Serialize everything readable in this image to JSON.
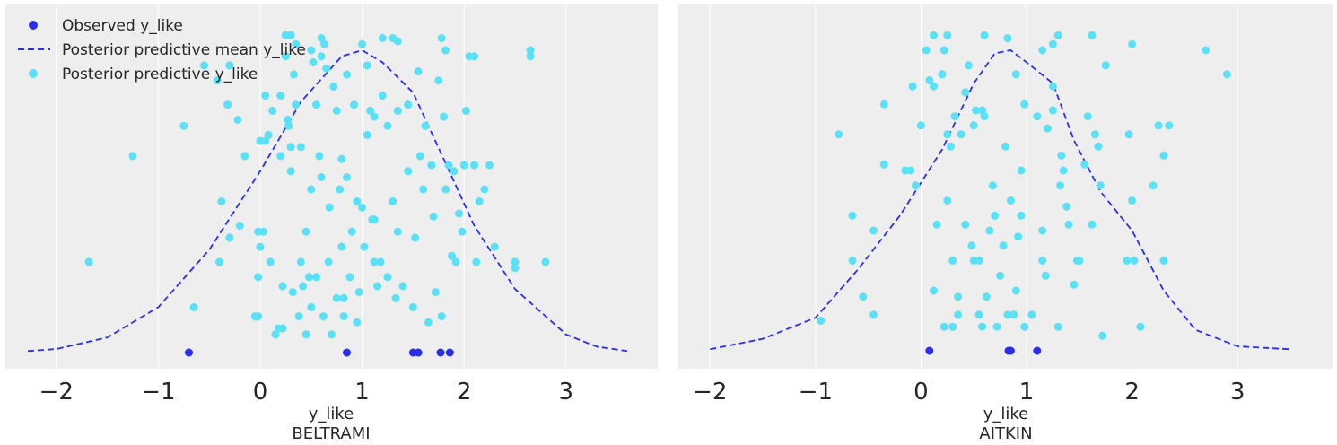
{
  "colors": {
    "background": "#eeeeee",
    "grid": "#ffffff",
    "observed": "#2a2eec",
    "mean_line": "#2a2eec",
    "predictive": "#5ae1f5"
  },
  "legend": {
    "placement": "top-left",
    "entries": [
      {
        "label": "Observed y_like",
        "marker": "dot",
        "color": "#2a2eec"
      },
      {
        "label": "Posterior predictive mean y_like",
        "marker": "dashed-line",
        "color": "#2a2eec"
      },
      {
        "label": "Posterior predictive y_like",
        "marker": "dot",
        "color": "#5ae1f5"
      }
    ]
  },
  "chart_data": [
    {
      "type": "scatter",
      "xlabel": "y_like",
      "title": "BELTRAMI",
      "xlim": [
        -2.5,
        3.9
      ],
      "xticks": [
        -2,
        -1,
        0,
        1,
        2,
        3
      ],
      "tick_labels": [
        "−2",
        "−1",
        "0",
        "1",
        "2",
        "3"
      ],
      "grid": "vertical",
      "observed": [
        -0.7,
        0.85,
        1.5,
        1.55,
        1.77,
        1.86
      ],
      "mean_curve": [
        [
          -2.28,
          0.005
        ],
        [
          -2.0,
          0.012
        ],
        [
          -1.5,
          0.05
        ],
        [
          -1.0,
          0.15
        ],
        [
          -0.5,
          0.34
        ],
        [
          0.0,
          0.6
        ],
        [
          0.4,
          0.83
        ],
        [
          0.8,
          0.98
        ],
        [
          1.0,
          1.0
        ],
        [
          1.2,
          0.96
        ],
        [
          1.5,
          0.86
        ],
        [
          1.8,
          0.64
        ],
        [
          2.1,
          0.42
        ],
        [
          2.5,
          0.21
        ],
        [
          3.0,
          0.06
        ],
        [
          3.3,
          0.02
        ],
        [
          3.6,
          0.005
        ]
      ],
      "predictive_points": [
        [
          -1.68,
          0.3
        ],
        [
          -1.25,
          0.65
        ],
        [
          -0.75,
          0.75
        ],
        [
          -0.65,
          0.15
        ],
        [
          -0.55,
          0.95
        ],
        [
          -0.42,
          0.9
        ],
        [
          -0.4,
          0.3
        ],
        [
          -0.38,
          0.5
        ],
        [
          -0.3,
          0.95
        ],
        [
          -0.32,
          0.82
        ],
        [
          -0.3,
          0.38
        ],
        [
          -0.22,
          0.77
        ],
        [
          -0.2,
          0.42
        ],
        [
          -0.15,
          0.65
        ],
        [
          -0.05,
          0.12
        ],
        [
          -0.02,
          0.12
        ],
        [
          0.0,
          0.7
        ],
        [
          -0.02,
          0.4
        ],
        [
          0.0,
          0.35
        ],
        [
          -0.02,
          0.25
        ],
        [
          0.05,
          0.85
        ],
        [
          0.03,
          0.4
        ],
        [
          0.05,
          0.7
        ],
        [
          0.08,
          0.72
        ],
        [
          0.1,
          0.3
        ],
        [
          0.12,
          0.8
        ],
        [
          0.15,
          0.06
        ],
        [
          0.18,
          0.08
        ],
        [
          0.2,
          0.65
        ],
        [
          0.22,
          0.08
        ],
        [
          0.2,
          0.85
        ],
        [
          0.22,
          0.22
        ],
        [
          0.25,
          0.98
        ],
        [
          0.28,
          0.75
        ],
        [
          0.3,
          0.68
        ],
        [
          0.27,
          0.77
        ],
        [
          0.32,
          0.2
        ],
        [
          0.3,
          0.6
        ],
        [
          0.35,
          0.82
        ],
        [
          0.38,
          0.12
        ],
        [
          0.33,
          0.92
        ],
        [
          0.4,
          0.68
        ],
        [
          0.4,
          0.3
        ],
        [
          0.42,
          0.22
        ],
        [
          0.45,
          0.4
        ],
        [
          0.45,
          0.06
        ],
        [
          0.48,
          0.25
        ],
        [
          0.5,
          0.54
        ],
        [
          0.52,
          0.96
        ],
        [
          0.5,
          0.15
        ],
        [
          0.55,
          0.25
        ],
        [
          0.55,
          0.82
        ],
        [
          0.58,
          0.65
        ],
        [
          0.6,
          0.98
        ],
        [
          0.6,
          0.58
        ],
        [
          0.62,
          0.12
        ],
        [
          0.65,
          0.94
        ],
        [
          0.67,
          0.3
        ],
        [
          0.68,
          0.48
        ],
        [
          0.7,
          0.06
        ],
        [
          0.72,
          0.88
        ],
        [
          0.75,
          0.8
        ],
        [
          0.75,
          0.18
        ],
        [
          0.78,
          0.54
        ],
        [
          0.8,
          0.64
        ],
        [
          0.8,
          0.35
        ],
        [
          0.82,
          0.18
        ],
        [
          0.85,
          0.58
        ],
        [
          0.82,
          0.12
        ],
        [
          0.85,
          0.92
        ],
        [
          0.88,
          0.25
        ],
        [
          0.9,
          0.4
        ],
        [
          0.92,
          0.82
        ],
        [
          0.95,
          0.1
        ],
        [
          0.95,
          0.5
        ],
        [
          0.97,
          0.2
        ],
        [
          1.0,
          0.48
        ],
        [
          1.02,
          0.35
        ],
        [
          1.05,
          0.95
        ],
        [
          1.05,
          0.72
        ],
        [
          1.08,
          0.8
        ],
        [
          1.1,
          0.44
        ],
        [
          1.12,
          0.44
        ],
        [
          1.12,
          0.78
        ],
        [
          1.12,
          0.3
        ],
        [
          1.15,
          0.22
        ],
        [
          1.18,
          0.3
        ],
        [
          1.2,
          0.85
        ],
        [
          1.25,
          0.75
        ],
        [
          1.25,
          0.25
        ],
        [
          1.3,
          0.5
        ],
        [
          1.33,
          0.18
        ],
        [
          1.35,
          0.4
        ],
        [
          1.35,
          0.8
        ],
        [
          1.4,
          0.22
        ],
        [
          1.45,
          0.6
        ],
        [
          1.45,
          0.82
        ],
        [
          1.5,
          0.15
        ],
        [
          1.52,
          0.38
        ],
        [
          1.55,
          0.93
        ],
        [
          1.57,
          0.65
        ],
        [
          1.6,
          0.54
        ],
        [
          1.62,
          0.75
        ],
        [
          1.65,
          0.1
        ],
        [
          1.68,
          0.62
        ],
        [
          1.7,
          0.45
        ],
        [
          1.72,
          0.2
        ],
        [
          1.75,
          0.9
        ],
        [
          1.78,
          0.12
        ],
        [
          1.8,
          0.78
        ],
        [
          1.82,
          0.54
        ],
        [
          1.85,
          0.62
        ],
        [
          1.88,
          0.32
        ],
        [
          1.9,
          0.6
        ],
        [
          1.92,
          0.3
        ],
        [
          1.95,
          0.46
        ],
        [
          1.98,
          0.4
        ],
        [
          2.0,
          0.62
        ],
        [
          2.02,
          0.8
        ],
        [
          2.05,
          0.98
        ],
        [
          2.1,
          0.62
        ],
        [
          2.12,
          0.3
        ],
        [
          2.15,
          0.5
        ],
        [
          2.2,
          0.54
        ],
        [
          2.25,
          0.62
        ],
        [
          2.3,
          0.35
        ],
        [
          2.5,
          0.28
        ],
        [
          2.5,
          0.3
        ],
        [
          2.65,
          0.98
        ],
        [
          2.65,
          1.0
        ],
        [
          2.8,
          0.3
        ],
        [
          0.25,
          1.05
        ],
        [
          0.35,
          1.02
        ],
        [
          0.5,
          1.0
        ],
        [
          0.6,
          1.04
        ],
        [
          0.63,
          1.02
        ],
        [
          1.2,
          1.04
        ],
        [
          1.3,
          1.04
        ],
        [
          1.35,
          1.03
        ],
        [
          1.0,
          1.02
        ],
        [
          0.3,
          1.05
        ],
        [
          1.78,
          1.04
        ],
        [
          1.82,
          1.0
        ],
        [
          2.1,
          0.98
        ]
      ]
    },
    {
      "type": "scatter",
      "xlabel": "y_like",
      "title": "AITKIN",
      "xlim": [
        -2.3,
        3.9
      ],
      "xticks": [
        -2,
        -1,
        0,
        1,
        2,
        3
      ],
      "tick_labels": [
        "−2",
        "−1",
        "0",
        "1",
        "2",
        "3"
      ],
      "grid": "vertical",
      "observed": [
        0.08,
        0.83,
        0.85,
        1.1
      ],
      "mean_curve": [
        [
          -2.0,
          0.005
        ],
        [
          -1.5,
          0.04
        ],
        [
          -1.0,
          0.11
        ],
        [
          -0.6,
          0.27
        ],
        [
          -0.2,
          0.45
        ],
        [
          0.2,
          0.67
        ],
        [
          0.5,
          0.89
        ],
        [
          0.7,
          0.99
        ],
        [
          0.85,
          1.0
        ],
        [
          1.0,
          0.96
        ],
        [
          1.25,
          0.89
        ],
        [
          1.45,
          0.7
        ],
        [
          1.7,
          0.53
        ],
        [
          2.0,
          0.4
        ],
        [
          2.3,
          0.2
        ],
        [
          2.6,
          0.07
        ],
        [
          3.0,
          0.015
        ],
        [
          3.5,
          0.005
        ]
      ],
      "predictive_points": [
        [
          -0.95,
          0.1
        ],
        [
          -0.78,
          0.72
        ],
        [
          -0.65,
          0.45
        ],
        [
          -0.65,
          0.3
        ],
        [
          -0.55,
          0.18
        ],
        [
          -0.45,
          0.12
        ],
        [
          -0.45,
          0.4
        ],
        [
          -0.35,
          0.82
        ],
        [
          -0.35,
          0.62
        ],
        [
          -0.15,
          0.6
        ],
        [
          -0.1,
          0.6
        ],
        [
          -0.05,
          0.55
        ],
        [
          -0.08,
          0.88
        ],
        [
          0.0,
          0.75
        ],
        [
          0.05,
          1.0
        ],
        [
          0.08,
          0.9
        ],
        [
          0.12,
          0.88
        ],
        [
          0.12,
          0.2
        ],
        [
          0.15,
          0.42
        ],
        [
          0.2,
          0.92
        ],
        [
          0.22,
          0.08
        ],
        [
          0.25,
          0.72
        ],
        [
          0.25,
          0.5
        ],
        [
          0.28,
          0.68
        ],
        [
          0.3,
          0.08
        ],
        [
          0.3,
          0.3
        ],
        [
          0.32,
          0.78
        ],
        [
          0.35,
          0.18
        ],
        [
          0.35,
          0.12
        ],
        [
          0.38,
          0.72
        ],
        [
          0.42,
          0.86
        ],
        [
          0.42,
          0.42
        ],
        [
          0.48,
          0.35
        ],
        [
          0.5,
          0.3
        ],
        [
          0.5,
          0.75
        ],
        [
          0.52,
          0.8
        ],
        [
          0.55,
          0.3
        ],
        [
          0.55,
          0.12
        ],
        [
          0.58,
          0.8
        ],
        [
          0.58,
          0.08
        ],
        [
          0.6,
          0.78
        ],
        [
          0.62,
          0.18
        ],
        [
          0.65,
          0.4
        ],
        [
          0.68,
          0.55
        ],
        [
          0.7,
          0.45
        ],
        [
          0.72,
          0.08
        ],
        [
          0.75,
          0.25
        ],
        [
          0.78,
          0.35
        ],
        [
          0.8,
          0.68
        ],
        [
          0.82,
          0.12
        ],
        [
          0.85,
          0.5
        ],
        [
          0.88,
          0.12
        ],
        [
          0.9,
          0.2
        ],
        [
          0.92,
          0.38
        ],
        [
          0.95,
          0.45
        ],
        [
          0.98,
          0.82
        ],
        [
          0.95,
          0.6
        ],
        [
          0.98,
          0.08
        ],
        [
          1.05,
          0.12
        ],
        [
          1.1,
          0.78
        ],
        [
          1.15,
          0.4
        ],
        [
          1.15,
          0.3
        ],
        [
          1.18,
          0.25
        ],
        [
          1.2,
          0.74
        ],
        [
          1.25,
          0.8
        ],
        [
          1.3,
          0.08
        ],
        [
          1.32,
          0.55
        ],
        [
          1.33,
          0.65
        ],
        [
          1.35,
          0.6
        ],
        [
          1.38,
          0.48
        ],
        [
          1.4,
          0.42
        ],
        [
          1.45,
          0.22
        ],
        [
          1.48,
          0.3
        ],
        [
          1.5,
          0.3
        ],
        [
          1.55,
          0.62
        ],
        [
          1.58,
          0.78
        ],
        [
          1.62,
          0.42
        ],
        [
          1.65,
          0.72
        ],
        [
          1.68,
          0.68
        ],
        [
          1.7,
          0.55
        ],
        [
          1.72,
          0.05
        ],
        [
          1.95,
          0.3
        ],
        [
          1.97,
          0.72
        ],
        [
          2.0,
          0.5
        ],
        [
          2.02,
          0.3
        ],
        [
          2.08,
          0.08
        ],
        [
          2.2,
          0.55
        ],
        [
          2.25,
          0.75
        ],
        [
          2.3,
          0.65
        ],
        [
          2.3,
          0.3
        ],
        [
          2.35,
          0.75
        ],
        [
          2.7,
          1.0
        ],
        [
          2.9,
          0.92
        ],
        [
          0.12,
          1.05
        ],
        [
          0.22,
          1.0
        ],
        [
          0.25,
          1.05
        ],
        [
          0.6,
          1.05
        ],
        [
          0.82,
          1.04
        ],
        [
          1.15,
          1.0
        ],
        [
          1.25,
          1.02
        ],
        [
          1.3,
          1.05
        ],
        [
          1.62,
          1.05
        ],
        [
          2.0,
          1.02
        ],
        [
          0.9,
          0.92
        ],
        [
          1.25,
          0.88
        ],
        [
          1.75,
          0.95
        ],
        [
          0.45,
          0.95
        ]
      ]
    }
  ]
}
